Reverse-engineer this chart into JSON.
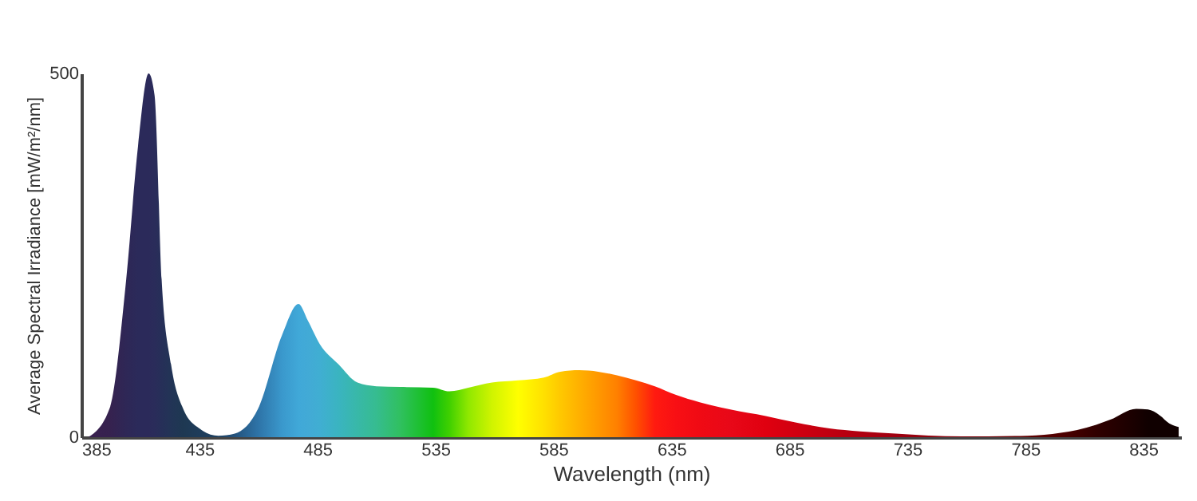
{
  "chart_data": {
    "type": "area",
    "xlabel": "Wavelength (nm)",
    "ylabel": "Average Spectral Irradiance [mW/m²/nm]",
    "x": [
      388,
      397,
      404,
      409,
      413.5,
      416,
      419,
      423,
      428,
      435,
      443,
      450,
      460,
      470,
      477,
      481,
      486,
      494,
      502,
      510,
      520,
      534,
      541,
      549,
      559,
      570,
      581,
      588,
      596,
      604,
      612,
      620,
      628,
      637,
      647,
      660,
      675,
      688,
      702,
      715,
      730,
      758,
      786,
      800,
      807,
      815,
      821,
      832,
      837,
      842,
      846,
      850
    ],
    "values": [
      0,
      40,
      217,
      400,
      500,
      470,
      217,
      100,
      40,
      12,
      2,
      5,
      40,
      140,
      183,
      160,
      128,
      100,
      75,
      70,
      69,
      68,
      63,
      68,
      75,
      78,
      82,
      90,
      92,
      90,
      85,
      78,
      70,
      58,
      48,
      38,
      29,
      20,
      12,
      8,
      5,
      1,
      2,
      6,
      10,
      17,
      24,
      39,
      38,
      30,
      19,
      14
    ],
    "colors": [
      "#3a2050",
      "#36224f",
      "#2e2756",
      "#2b2a5a",
      "#2b2a5a",
      "#2a2c5a",
      "#262f58",
      "#223456",
      "#1e3852",
      "#1e3c5a",
      "#1e4060",
      "#24527c",
      "#2e74a8",
      "#3a98cc",
      "#40a8d8",
      "#42aad6",
      "#40aed2",
      "#3ab4c0",
      "#38b8a8",
      "#36bc90",
      "#30c060",
      "#10c010",
      "#40d000",
      "#90e800",
      "#d0f400",
      "#ffff00",
      "#ffe000",
      "#ffc800",
      "#ffb000",
      "#ff9800",
      "#ff8000",
      "#ff5000",
      "#ff1a10",
      "#f80f14",
      "#f00a14",
      "#e80818",
      "#e00010",
      "#d00010",
      "#c00010",
      "#b00010",
      "#a00010",
      "#800008",
      "#600000",
      "#500000",
      "#400000",
      "#300000",
      "#280000",
      "#180000",
      "#100000",
      "#100000",
      "#100000",
      "#100000"
    ],
    "xlim": [
      385,
      851
    ],
    "ylim": [
      0,
      500
    ],
    "xticks": [
      385,
      435,
      485,
      535,
      585,
      635,
      685,
      735,
      785,
      835
    ],
    "yticks": [
      0,
      500
    ],
    "grid": false
  }
}
